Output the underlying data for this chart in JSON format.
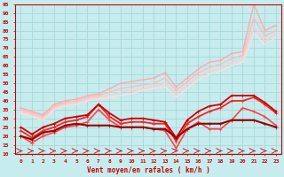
{
  "bg_color": "#c6ecee",
  "grid_color": "#a8d8da",
  "xlabel": "Vent moyen/en rafales ( km/h )",
  "x_values": [
    0,
    1,
    2,
    3,
    4,
    5,
    6,
    7,
    8,
    9,
    10,
    11,
    12,
    13,
    14,
    15,
    16,
    17,
    18,
    19,
    20,
    21,
    22,
    23
  ],
  "ylim": [
    10,
    95
  ],
  "yticks": [
    10,
    15,
    20,
    25,
    30,
    35,
    40,
    45,
    50,
    55,
    60,
    65,
    70,
    75,
    80,
    85,
    90,
    95
  ],
  "series": [
    {
      "color": "#ffaaaa",
      "lw": 1.0,
      "marker": "+",
      "ms": 3,
      "data": [
        36,
        34,
        32,
        38,
        40,
        41,
        43,
        44,
        47,
        50,
        51,
        52,
        53,
        56,
        48,
        53,
        58,
        62,
        63,
        67,
        68,
        95,
        80,
        83
      ]
    },
    {
      "color": "#ffbbbb",
      "lw": 1.0,
      "marker": "+",
      "ms": 3,
      "data": [
        35,
        33,
        31,
        37,
        39,
        40,
        42,
        43,
        45,
        47,
        48,
        49,
        50,
        53,
        46,
        51,
        56,
        59,
        61,
        64,
        66,
        87,
        77,
        80
      ]
    },
    {
      "color": "#ffcccc",
      "lw": 1.0,
      "marker": null,
      "ms": 0,
      "data": [
        34,
        32,
        30,
        36,
        38,
        39,
        41,
        42,
        43,
        45,
        46,
        47,
        48,
        50,
        44,
        49,
        54,
        57,
        58,
        62,
        64,
        82,
        74,
        78
      ]
    },
    {
      "color": "#ffdddd",
      "lw": 1.0,
      "marker": null,
      "ms": 0,
      "data": [
        33,
        31,
        29,
        35,
        37,
        38,
        40,
        41,
        42,
        43,
        44,
        46,
        47,
        48,
        42,
        47,
        52,
        55,
        57,
        60,
        62,
        78,
        72,
        76
      ]
    },
    {
      "color": "#ff4444",
      "lw": 1.2,
      "marker": "+",
      "ms": 3,
      "data": [
        20,
        16,
        20,
        22,
        25,
        26,
        28,
        35,
        29,
        25,
        25,
        25,
        24,
        23,
        13,
        24,
        28,
        24,
        24,
        29,
        36,
        34,
        31,
        26
      ]
    },
    {
      "color": "#ff2222",
      "lw": 1.3,
      "marker": "+",
      "ms": 3,
      "data": [
        23,
        19,
        23,
        25,
        28,
        29,
        31,
        38,
        31,
        27,
        28,
        28,
        27,
        27,
        17,
        27,
        31,
        34,
        36,
        40,
        40,
        42,
        38,
        33
      ]
    },
    {
      "color": "#cc0000",
      "lw": 1.3,
      "marker": "+",
      "ms": 3,
      "data": [
        25,
        21,
        25,
        27,
        30,
        31,
        32,
        38,
        33,
        29,
        30,
        30,
        29,
        28,
        19,
        29,
        34,
        37,
        38,
        43,
        43,
        43,
        39,
        34
      ]
    },
    {
      "color": "#990000",
      "lw": 1.5,
      "marker": "+",
      "ms": 3,
      "data": [
        20,
        18,
        22,
        23,
        26,
        27,
        26,
        26,
        26,
        25,
        25,
        25,
        24,
        24,
        19,
        24,
        27,
        27,
        27,
        29,
        29,
        29,
        27,
        25
      ]
    }
  ]
}
